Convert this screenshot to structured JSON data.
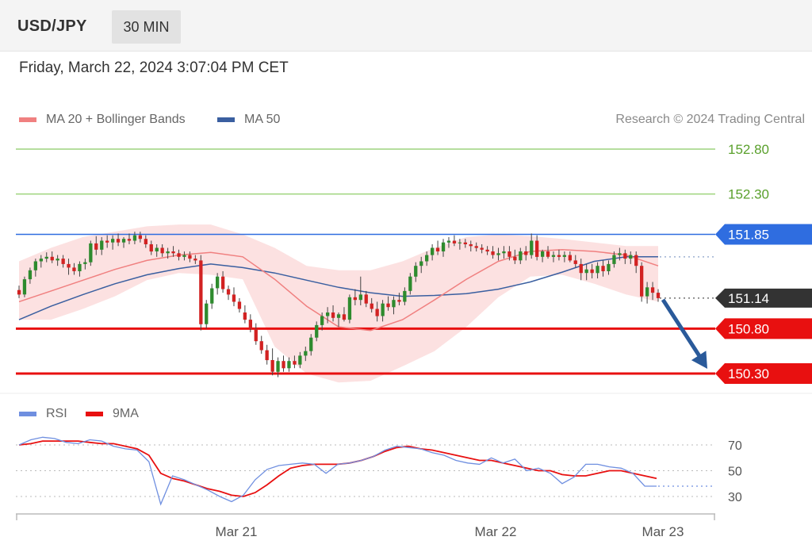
{
  "header": {
    "symbol": "USD/JPY",
    "interval": "30 MIN"
  },
  "timestamp": "Friday, March 22, 2024 3:07:04 PM CET",
  "legend": {
    "ma20_label": "MA 20 + Bollinger Bands",
    "ma50_label": "MA 50",
    "rsi_label": "RSI",
    "rsi_ma_label": "9MA"
  },
  "credit": "Research © 2024 Trading Central",
  "colors": {
    "ma20": "#f08080",
    "ma50": "#3a5fa0",
    "bollinger_fill": "#fcdcdc",
    "candle_up": "#2e8b2e",
    "candle_down": "#d22222",
    "target_line": "#9ed47e",
    "target_label": "#5aa02c",
    "resistance": "#2f6de0",
    "support": "#e81010",
    "current": "#333333",
    "arrow": "#2a5a9a",
    "rsi": "#6f8fe0",
    "rsi_ma": "#e81010"
  },
  "chart_data": [
    {
      "type": "candlestick",
      "ylim": [
        149.95,
        153.0
      ],
      "x_ticks": [
        "Mar 21",
        "Mar 22",
        "Mar 23"
      ],
      "levels": [
        {
          "value": 152.8,
          "label": "152.80",
          "kind": "target"
        },
        {
          "value": 152.3,
          "label": "152.30",
          "kind": "target"
        },
        {
          "value": 151.85,
          "label": "151.85",
          "kind": "resistance"
        },
        {
          "value": 151.14,
          "label": "151.14",
          "kind": "current"
        },
        {
          "value": 150.8,
          "label": "150.80",
          "kind": "support"
        },
        {
          "value": 150.3,
          "label": "150.30",
          "kind": "support"
        }
      ],
      "ohlc": [
        [
          151.23,
          151.28,
          151.14,
          151.18
        ],
        [
          151.18,
          151.38,
          151.15,
          151.35
        ],
        [
          151.35,
          151.48,
          151.3,
          151.45
        ],
        [
          151.45,
          151.58,
          151.38,
          151.55
        ],
        [
          151.55,
          151.62,
          151.48,
          151.58
        ],
        [
          151.58,
          151.65,
          151.54,
          151.6
        ],
        [
          151.6,
          151.66,
          151.53,
          151.56
        ],
        [
          151.56,
          151.62,
          151.5,
          151.58
        ],
        [
          151.58,
          151.62,
          151.48,
          151.52
        ],
        [
          151.52,
          151.58,
          151.4,
          151.48
        ],
        [
          151.48,
          151.53,
          151.4,
          151.44
        ],
        [
          151.44,
          151.55,
          151.38,
          151.52
        ],
        [
          151.52,
          151.58,
          151.46,
          151.54
        ],
        [
          151.54,
          151.78,
          151.5,
          151.75
        ],
        [
          151.75,
          151.83,
          151.62,
          151.68
        ],
        [
          151.68,
          151.82,
          151.62,
          151.78
        ],
        [
          151.78,
          151.84,
          151.7,
          151.76
        ],
        [
          151.76,
          151.84,
          151.68,
          151.8
        ],
        [
          151.8,
          151.86,
          151.72,
          151.76
        ],
        [
          151.76,
          151.82,
          151.7,
          151.8
        ],
        [
          151.8,
          151.86,
          151.74,
          151.78
        ],
        [
          151.78,
          151.88,
          151.74,
          151.84
        ],
        [
          151.84,
          151.88,
          151.76,
          151.8
        ],
        [
          151.8,
          151.84,
          151.7,
          151.74
        ],
        [
          151.74,
          151.78,
          151.62,
          151.66
        ],
        [
          151.66,
          151.74,
          151.6,
          151.7
        ],
        [
          151.7,
          151.74,
          151.6,
          151.64
        ],
        [
          151.64,
          151.7,
          151.58,
          151.66
        ],
        [
          151.66,
          151.72,
          151.6,
          151.64
        ],
        [
          151.64,
          151.68,
          151.56,
          151.6
        ],
        [
          151.6,
          151.66,
          151.56,
          151.62
        ],
        [
          151.62,
          151.66,
          151.54,
          151.58
        ],
        [
          151.58,
          151.62,
          151.52,
          151.56
        ],
        [
          151.56,
          151.62,
          150.78,
          150.85
        ],
        [
          150.85,
          151.12,
          150.8,
          151.08
        ],
        [
          151.08,
          151.3,
          151.02,
          151.25
        ],
        [
          151.25,
          151.42,
          151.18,
          151.38
        ],
        [
          151.38,
          151.44,
          151.2,
          151.24
        ],
        [
          151.24,
          151.28,
          151.12,
          151.18
        ],
        [
          151.18,
          151.26,
          151.05,
          151.1
        ],
        [
          151.1,
          151.14,
          150.98,
          151.02
        ],
        [
          150.98,
          151.06,
          150.86,
          150.9
        ],
        [
          150.9,
          150.96,
          150.76,
          150.8
        ],
        [
          150.8,
          150.86,
          150.62,
          150.66
        ],
        [
          150.66,
          150.72,
          150.52,
          150.56
        ],
        [
          150.56,
          150.62,
          150.4,
          150.45
        ],
        [
          150.45,
          150.58,
          150.28,
          150.32
        ],
        [
          150.32,
          150.48,
          150.26,
          150.44
        ],
        [
          150.44,
          150.5,
          150.32,
          150.36
        ],
        [
          150.36,
          150.48,
          150.32,
          150.44
        ],
        [
          150.44,
          150.5,
          150.36,
          150.4
        ],
        [
          150.4,
          150.54,
          150.36,
          150.5
        ],
        [
          150.5,
          150.6,
          150.44,
          150.55
        ],
        [
          150.55,
          150.74,
          150.5,
          150.7
        ],
        [
          150.7,
          150.88,
          150.66,
          150.84
        ],
        [
          150.84,
          150.98,
          150.78,
          150.94
        ],
        [
          150.94,
          151.04,
          150.86,
          150.98
        ],
        [
          150.98,
          151.06,
          150.88,
          150.92
        ],
        [
          150.92,
          150.98,
          150.82,
          150.96
        ],
        [
          150.96,
          151.04,
          150.88,
          150.9
        ],
        [
          150.9,
          151.18,
          150.86,
          151.15
        ],
        [
          151.15,
          151.24,
          151.06,
          151.12
        ],
        [
          151.12,
          151.38,
          151.06,
          151.18
        ],
        [
          151.18,
          151.22,
          151.04,
          151.08
        ],
        [
          151.08,
          151.14,
          150.98,
          151.02
        ],
        [
          151.02,
          151.1,
          150.88,
          150.94
        ],
        [
          150.94,
          151.12,
          150.88,
          151.08
        ],
        [
          151.08,
          151.16,
          151.0,
          151.04
        ],
        [
          151.04,
          151.16,
          150.96,
          151.12
        ],
        [
          151.12,
          151.2,
          151.06,
          151.1
        ],
        [
          151.1,
          151.26,
          151.06,
          151.22
        ],
        [
          151.22,
          151.42,
          151.18,
          151.38
        ],
        [
          151.38,
          151.54,
          151.32,
          151.5
        ],
        [
          151.5,
          151.6,
          151.42,
          151.55
        ],
        [
          151.55,
          151.66,
          151.5,
          151.62
        ],
        [
          151.62,
          151.74,
          151.56,
          151.7
        ],
        [
          151.7,
          151.78,
          151.62,
          151.66
        ],
        [
          151.66,
          151.8,
          151.6,
          151.76
        ],
        [
          151.76,
          151.82,
          151.7,
          151.78
        ],
        [
          151.78,
          151.84,
          151.72,
          151.75
        ],
        [
          151.75,
          151.8,
          151.68,
          151.76
        ],
        [
          151.76,
          151.8,
          151.7,
          151.74
        ],
        [
          151.74,
          151.78,
          151.66,
          151.72
        ],
        [
          151.72,
          151.76,
          151.66,
          151.7
        ],
        [
          151.7,
          151.74,
          151.64,
          151.68
        ],
        [
          151.68,
          151.72,
          151.62,
          151.66
        ],
        [
          151.66,
          151.72,
          151.58,
          151.62
        ],
        [
          151.62,
          151.7,
          151.56,
          151.64
        ],
        [
          151.64,
          151.72,
          151.58,
          151.66
        ],
        [
          151.66,
          151.72,
          151.56,
          151.6
        ],
        [
          151.6,
          151.68,
          151.52,
          151.56
        ],
        [
          151.56,
          151.7,
          151.52,
          151.66
        ],
        [
          151.66,
          151.72,
          151.56,
          151.62
        ],
        [
          151.62,
          151.86,
          151.58,
          151.78
        ],
        [
          151.78,
          151.84,
          151.56,
          151.6
        ],
        [
          151.6,
          151.68,
          151.54,
          151.66
        ],
        [
          151.66,
          151.72,
          151.58,
          151.6
        ],
        [
          151.6,
          151.66,
          151.54,
          151.62
        ],
        [
          151.62,
          151.68,
          151.56,
          151.6
        ],
        [
          151.6,
          151.66,
          151.54,
          151.62
        ],
        [
          151.62,
          151.66,
          151.54,
          151.56
        ],
        [
          151.56,
          151.62,
          151.48,
          151.52
        ],
        [
          151.52,
          151.58,
          151.34,
          151.42
        ],
        [
          151.42,
          151.52,
          151.34,
          151.46
        ],
        [
          151.46,
          151.52,
          151.36,
          151.42
        ],
        [
          151.42,
          151.54,
          151.36,
          151.5
        ],
        [
          151.5,
          151.56,
          151.38,
          151.44
        ],
        [
          151.44,
          151.56,
          151.4,
          151.52
        ],
        [
          151.52,
          151.66,
          151.48,
          151.62
        ],
        [
          151.62,
          151.7,
          151.56,
          151.64
        ],
        [
          151.64,
          151.68,
          151.52,
          151.58
        ],
        [
          151.58,
          151.66,
          151.52,
          151.62
        ],
        [
          151.62,
          151.66,
          151.42,
          151.5
        ],
        [
          151.5,
          151.54,
          151.1,
          151.16
        ],
        [
          151.16,
          151.32,
          151.08,
          151.26
        ],
        [
          151.26,
          151.32,
          151.12,
          151.2
        ],
        [
          151.2,
          151.24,
          151.1,
          151.14
        ]
      ],
      "bollinger": {
        "upper": [
          151.55,
          151.7,
          151.82,
          151.88,
          151.94,
          151.96,
          151.96,
          151.85,
          151.7,
          151.5,
          151.45,
          151.45,
          151.55,
          151.7,
          151.82,
          151.85,
          151.83,
          151.8,
          151.76,
          151.72,
          151.72
        ],
        "lower": [
          150.9,
          150.9,
          151.02,
          151.16,
          151.34,
          151.42,
          151.4,
          151.35,
          150.6,
          150.3,
          150.2,
          150.22,
          150.38,
          150.55,
          150.82,
          151.15,
          151.38,
          151.4,
          151.3,
          151.18,
          151.1
        ]
      },
      "ma20": [
        151.1,
        151.22,
        151.34,
        151.46,
        151.56,
        151.62,
        151.65,
        151.6,
        151.35,
        151.05,
        150.82,
        150.78,
        150.9,
        151.12,
        151.35,
        151.55,
        151.66,
        151.68,
        151.66,
        151.62,
        151.5
      ],
      "ma50": [
        150.9,
        151.05,
        151.18,
        151.3,
        151.4,
        151.47,
        151.52,
        151.48,
        151.42,
        151.34,
        151.26,
        151.2,
        151.16,
        151.17,
        151.19,
        151.24,
        151.32,
        151.43,
        151.55,
        151.6,
        151.6
      ],
      "forecast_arrow": {
        "from": 151.14,
        "to": 150.3
      }
    },
    {
      "type": "line",
      "title": "",
      "ylim": [
        10,
        90
      ],
      "y_ticks": [
        70,
        50,
        30
      ],
      "series": [
        {
          "name": "RSI",
          "values": [
            70,
            74,
            76,
            75,
            72,
            71,
            74,
            73,
            69,
            67,
            66,
            57,
            24,
            46,
            43,
            39,
            35,
            30,
            26,
            31,
            43,
            51,
            54,
            55,
            56,
            55,
            48,
            55,
            56,
            58,
            61,
            66,
            69,
            68,
            67,
            64,
            62,
            58,
            56,
            55,
            60,
            56,
            59,
            50,
            52,
            48,
            40,
            45,
            55,
            55,
            53,
            52,
            48,
            38,
            38
          ]
        },
        {
          "name": "9MA",
          "values": [
            70,
            71,
            73,
            73,
            73,
            73,
            72,
            71,
            71,
            69,
            67,
            62,
            48,
            44,
            42,
            39,
            36,
            34,
            31,
            30,
            33,
            39,
            46,
            52,
            54,
            55,
            55,
            55,
            56,
            58,
            61,
            65,
            68,
            69,
            67,
            66,
            64,
            62,
            60,
            58,
            58,
            56,
            54,
            52,
            50,
            50,
            47,
            46,
            46,
            48,
            50,
            50,
            48,
            46,
            44
          ]
        }
      ]
    }
  ]
}
